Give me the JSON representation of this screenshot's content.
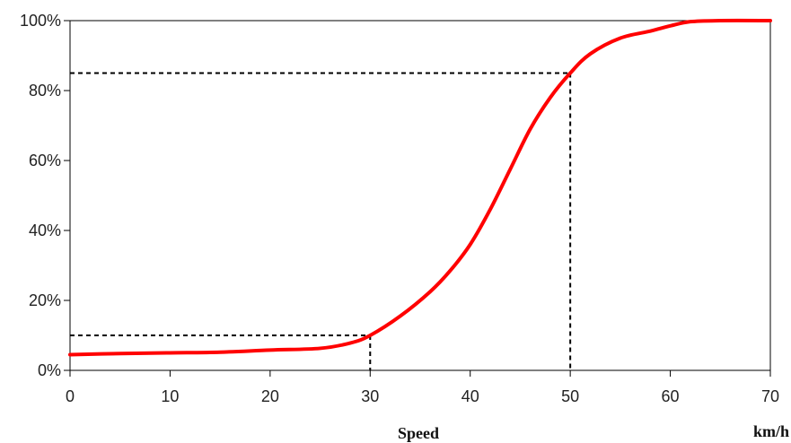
{
  "chart_data": {
    "type": "line",
    "title": "",
    "xlabel": "Speed",
    "x_unit_label": "km/h",
    "ylabel": "",
    "xlim": [
      0,
      70
    ],
    "ylim": [
      0,
      100
    ],
    "x_ticks": [
      0,
      10,
      20,
      30,
      40,
      50,
      60,
      70
    ],
    "x_tick_labels": [
      "0",
      "10",
      "20",
      "30",
      "40",
      "50",
      "60",
      "70"
    ],
    "y_ticks": [
      0,
      20,
      40,
      60,
      80,
      100
    ],
    "y_tick_labels": [
      "0%",
      "20%",
      "40%",
      "60%",
      "80%",
      "100%"
    ],
    "grid": false,
    "series": [
      {
        "color": "#ff0000",
        "points": [
          [
            0,
            4.5
          ],
          [
            5,
            4.8
          ],
          [
            10,
            5.0
          ],
          [
            15,
            5.2
          ],
          [
            20,
            5.8
          ],
          [
            25,
            6.3
          ],
          [
            28,
            7.8
          ],
          [
            30,
            10.0
          ],
          [
            33,
            15.5
          ],
          [
            36,
            22.5
          ],
          [
            38,
            28.5
          ],
          [
            40,
            36.0
          ],
          [
            42,
            46.0
          ],
          [
            44,
            57.5
          ],
          [
            46,
            69.0
          ],
          [
            48,
            78.0
          ],
          [
            50,
            85.0
          ],
          [
            52,
            90.5
          ],
          [
            55,
            95.0
          ],
          [
            58,
            97.0
          ],
          [
            60,
            98.5
          ],
          [
            62,
            99.7
          ],
          [
            65,
            100.0
          ],
          [
            70,
            100.0
          ]
        ]
      }
    ],
    "reference_lines": [
      {
        "x": 30,
        "y": 10
      },
      {
        "x": 50,
        "y": 85
      }
    ]
  }
}
